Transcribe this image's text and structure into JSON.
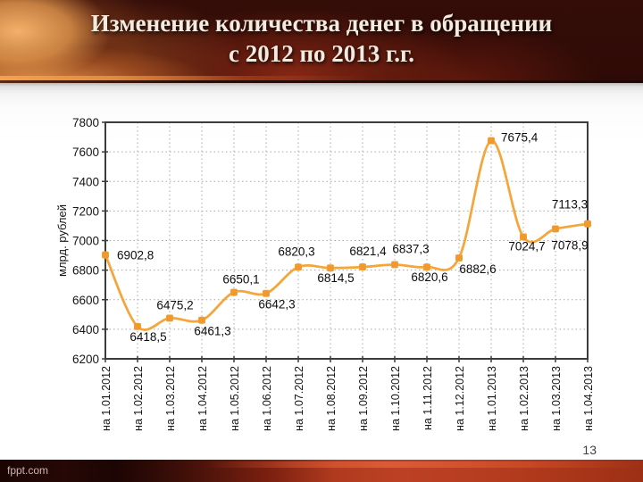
{
  "title": {
    "line1": "Изменение количества денег в обращении",
    "line2": "с 2012 по 2013 г.г."
  },
  "chart_data": {
    "type": "line",
    "ylabel": "млрд. рублей",
    "xlabel": "",
    "ylim": [
      6200,
      7800
    ],
    "ytick_step": 200,
    "grid": true,
    "legend_position": "none",
    "line_color": "#F5A63B",
    "marker_color": "#F0992E",
    "categories": [
      "на 1.01.2012",
      "на 1.02.2012",
      "на 1.03.2012",
      "на 1.04.2012",
      "на 1.05.2012",
      "на 1.06.2012",
      "на 1.07.2012",
      "на 1.08.2012",
      "на 1.09.2012",
      "на 1.10.2012",
      "на 1.11.2012",
      "на 1.12.2012",
      "на 1.01.2013",
      "на 1.02.2013",
      "на 1.03.2013",
      "на 1.04.2013"
    ],
    "series": [
      {
        "name": "Количество денег в обращении",
        "values": [
          6902.8,
          6418.5,
          6475.2,
          6461.3,
          6650.1,
          6642.3,
          6820.3,
          6814.5,
          6821.4,
          6837.3,
          6820.6,
          6882.6,
          7675.4,
          7024.7,
          7078.9,
          7113.3
        ]
      }
    ],
    "point_labels": [
      "6902,8",
      "6418,5",
      "6475,2",
      "6461,3",
      "6650,1",
      "6642,3",
      "6820,3",
      "6814,5",
      "6821,4",
      "6837,3",
      "6820,6",
      "6882,6",
      "7675,4",
      "7024,7",
      "7078,9",
      "7113,3"
    ],
    "label_offsets": [
      [
        13,
        5,
        "start"
      ],
      [
        12,
        16,
        "middle"
      ],
      [
        6,
        -10,
        "middle"
      ],
      [
        12,
        17,
        "middle"
      ],
      [
        8,
        -10,
        "middle"
      ],
      [
        12,
        17,
        "middle"
      ],
      [
        -2,
        -13,
        "middle"
      ],
      [
        6,
        16,
        "middle"
      ],
      [
        6,
        -13,
        "middle"
      ],
      [
        18,
        -13,
        "middle"
      ],
      [
        3,
        16,
        "middle"
      ],
      [
        21,
        17,
        "middle"
      ],
      [
        11,
        1,
        "start"
      ],
      [
        4,
        15,
        "middle"
      ],
      [
        16,
        23,
        "middle"
      ],
      [
        -20,
        -17,
        "middle"
      ]
    ]
  },
  "page": {
    "number": "13"
  },
  "footer": {
    "watermark": "fppt.com"
  }
}
